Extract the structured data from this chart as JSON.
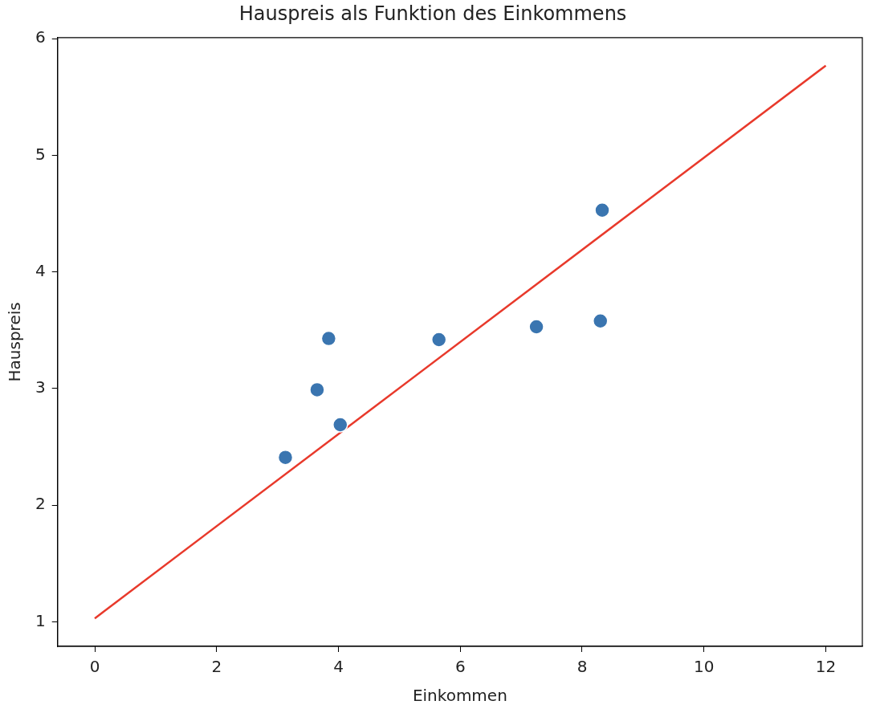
{
  "chart_data": {
    "type": "scatter",
    "title": "Hauspreis als Funktion des Einkommens",
    "xlabel": "Einkommen",
    "ylabel": "Hauspreis",
    "xlim": [
      -0.61,
      12.6
    ],
    "ylim": [
      0.79,
      6.01
    ],
    "xticks": [
      0,
      2,
      4,
      6,
      8,
      10,
      12
    ],
    "yticks": [
      1,
      2,
      3,
      4,
      5,
      6
    ],
    "grid": false,
    "legend": false,
    "series": [
      {
        "type": "scatter",
        "marker": "circle",
        "color": "#3a75b0",
        "x": [
          3.13,
          3.65,
          3.84,
          4.03,
          5.65,
          7.25,
          8.3,
          8.33
        ],
        "values": [
          2.41,
          2.99,
          3.43,
          2.69,
          3.42,
          3.53,
          3.58,
          4.53
        ]
      },
      {
        "type": "line",
        "marker": "none",
        "color": "#e8392b",
        "x": [
          0,
          12
        ],
        "values": [
          1.03,
          5.77
        ]
      }
    ]
  }
}
